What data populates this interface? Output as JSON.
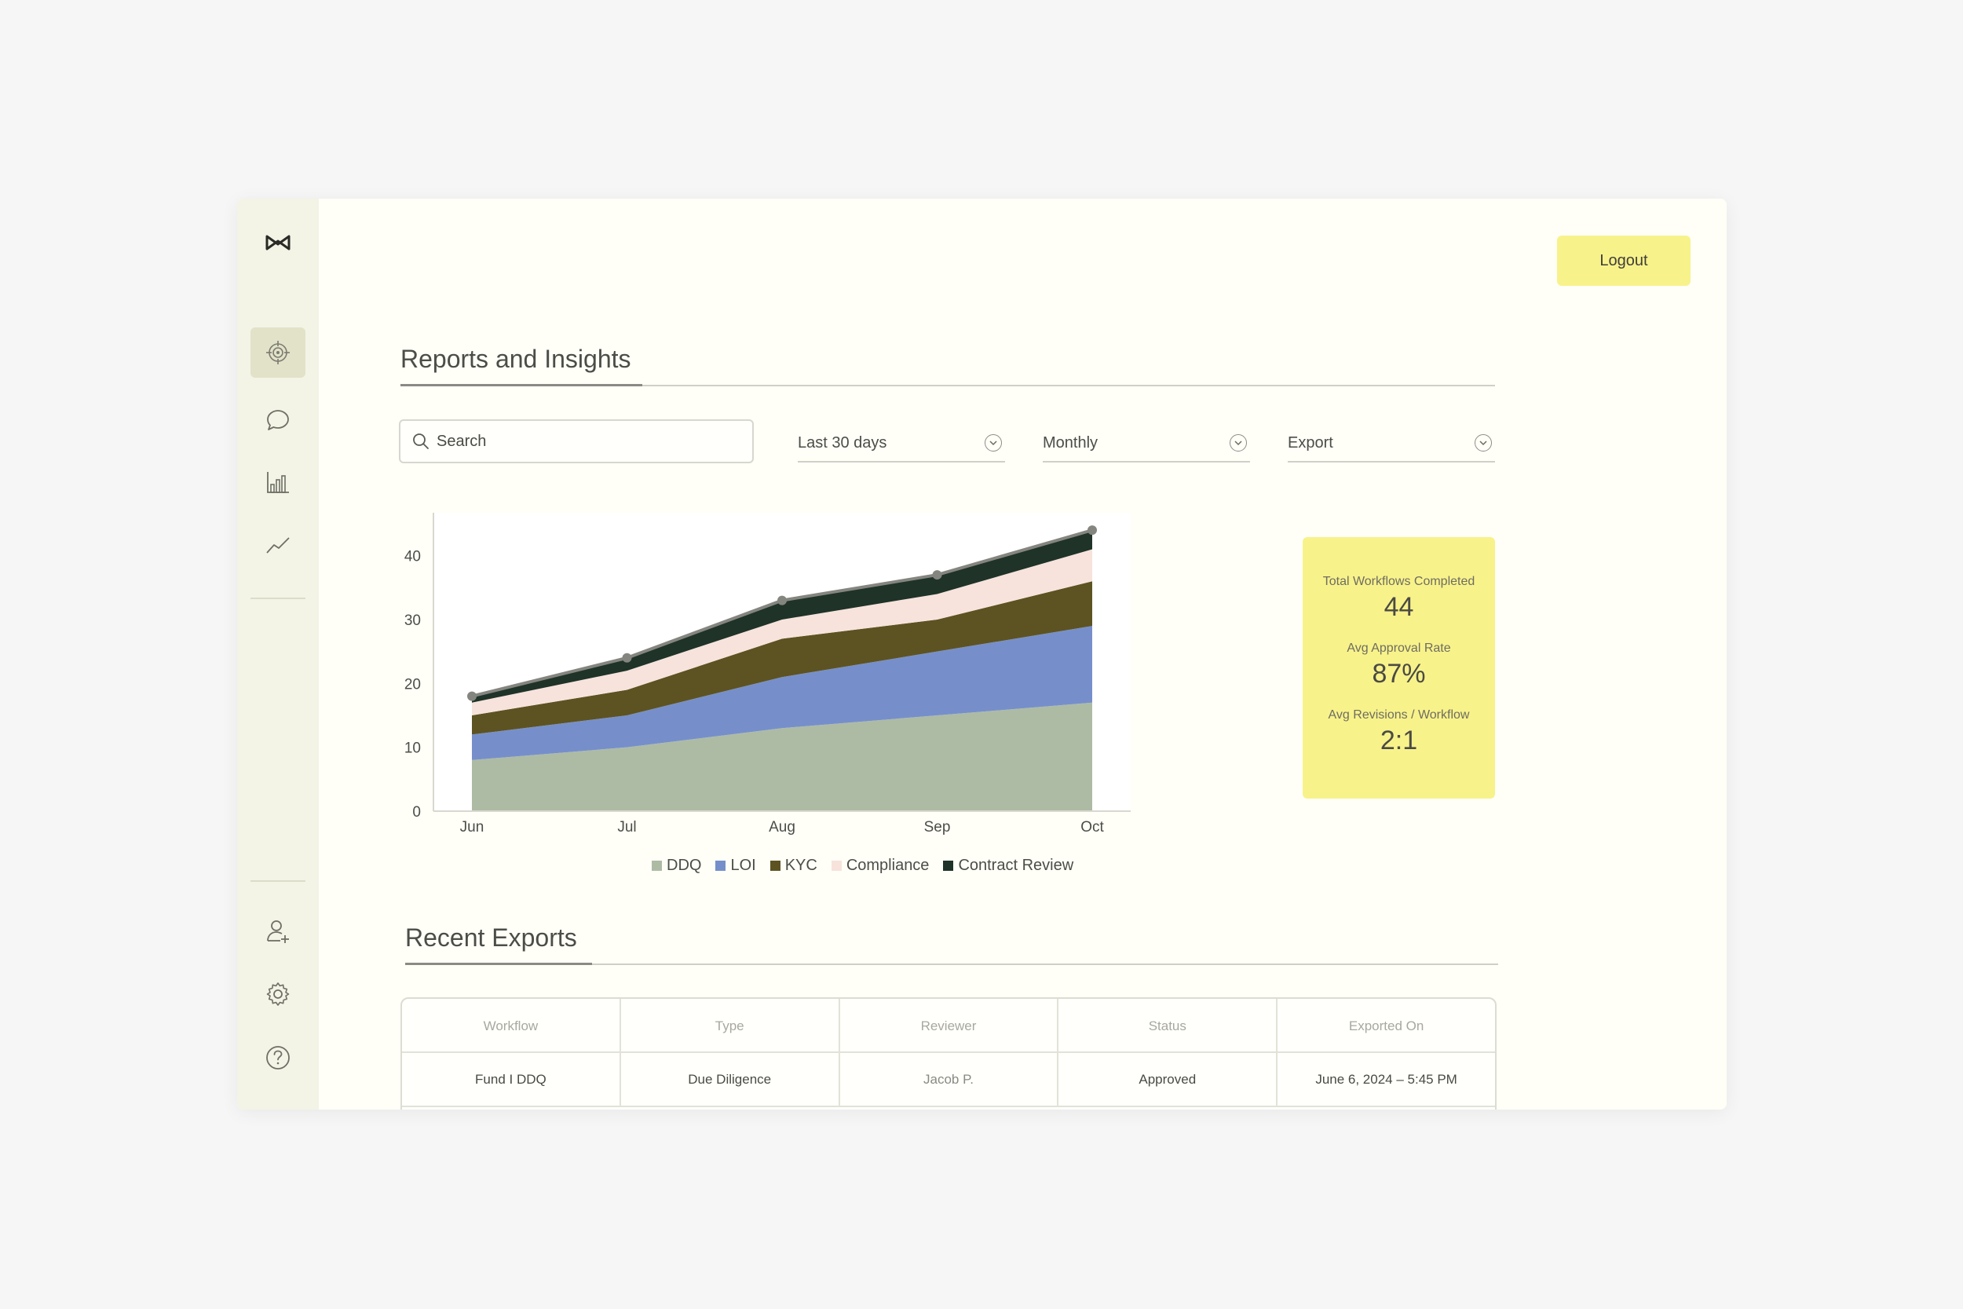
{
  "header": {
    "logout_label": "Logout"
  },
  "sidebar": {
    "items": [
      {
        "icon": "target-icon",
        "active": true
      },
      {
        "icon": "chat-icon",
        "active": false
      },
      {
        "icon": "bar-chart-icon",
        "active": false
      },
      {
        "icon": "trend-line-icon",
        "active": false
      }
    ],
    "bottom_items": [
      {
        "icon": "add-user-icon"
      },
      {
        "icon": "gear-icon"
      },
      {
        "icon": "help-icon"
      }
    ]
  },
  "reports": {
    "title": "Reports and Insights",
    "search_placeholder": "Search",
    "filters": {
      "range": "Last 30 days",
      "interval": "Monthly",
      "export": "Export"
    }
  },
  "chart_data": {
    "type": "area",
    "stacked": true,
    "categories": [
      "Jun",
      "Jul",
      "Aug",
      "Sep",
      "Oct"
    ],
    "y_ticks": [
      0,
      10,
      20,
      30,
      40
    ],
    "ylim": [
      0,
      45
    ],
    "series": [
      {
        "name": "DDQ",
        "color": "#adbba5",
        "values": [
          8,
          10,
          13,
          15,
          17
        ]
      },
      {
        "name": "LOI",
        "color": "#768fcb",
        "values": [
          4,
          5,
          8,
          10,
          12
        ]
      },
      {
        "name": "KYC",
        "color": "#5d5322",
        "values": [
          3,
          4,
          6,
          5,
          7
        ]
      },
      {
        "name": "Compliance",
        "color": "#f7e3dc",
        "values": [
          2,
          3,
          3,
          4,
          5
        ]
      },
      {
        "name": "Contract Review",
        "color": "#1f3328",
        "values": [
          1,
          2,
          3,
          3,
          3
        ]
      }
    ],
    "totals": [
      18,
      24,
      33,
      37,
      44
    ],
    "legend_position": "bottom",
    "grid": false
  },
  "stats": [
    {
      "label": "Total Workflows Completed",
      "value": "44"
    },
    {
      "label": "Avg Approval Rate",
      "value": "87%"
    },
    {
      "label": "Avg Revisions / Workflow",
      "value": "2:1"
    }
  ],
  "exports": {
    "title": "Recent Exports",
    "columns": [
      "Workflow",
      "Type",
      "Reviewer",
      "Status",
      "Exported On"
    ],
    "rows": [
      [
        "Fund I DDQ",
        "Due Diligence",
        "Jacob P.",
        "Approved",
        "June 6, 2024 – 5:45 PM"
      ]
    ]
  }
}
